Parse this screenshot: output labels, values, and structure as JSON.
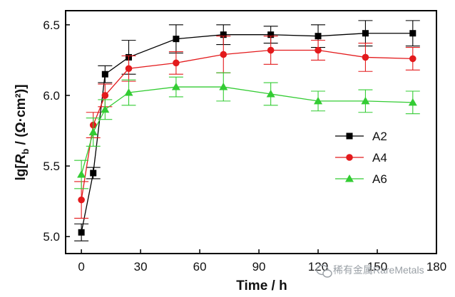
{
  "chart_data": {
    "type": "line",
    "xlabel": "Time / h",
    "ylabel_parts": {
      "pre": "lg[",
      "italic": "R",
      "sub": "b",
      "post": " / (Ω·cm²)]"
    },
    "xlim": [
      -8,
      180
    ],
    "ylim": [
      4.88,
      6.6
    ],
    "xticks": [
      0,
      30,
      60,
      90,
      120,
      150,
      180
    ],
    "yticks": [
      5.0,
      5.5,
      6.0,
      6.5
    ],
    "ytick_labels": [
      "5.0",
      "5.5",
      "6.0",
      "6.5"
    ],
    "legend_position": "right-middle",
    "series": [
      {
        "name": "A2",
        "color": "#000000",
        "marker": "square",
        "points": [
          {
            "x": 0,
            "y": 5.03,
            "err": 0.06
          },
          {
            "x": 6,
            "y": 5.45,
            "err": 0.04
          },
          {
            "x": 12,
            "y": 6.15,
            "err": 0.06
          },
          {
            "x": 24,
            "y": 6.27,
            "err": 0.12
          },
          {
            "x": 48,
            "y": 6.4,
            "err": 0.1
          },
          {
            "x": 72,
            "y": 6.43,
            "err": 0.07
          },
          {
            "x": 96,
            "y": 6.43,
            "err": 0.06
          },
          {
            "x": 120,
            "y": 6.42,
            "err": 0.08
          },
          {
            "x": 144,
            "y": 6.44,
            "err": 0.09
          },
          {
            "x": 168,
            "y": 6.44,
            "err": 0.09
          }
        ]
      },
      {
        "name": "A4",
        "color": "#e31a1c",
        "marker": "circle",
        "points": [
          {
            "x": 0,
            "y": 5.26,
            "err": 0.13
          },
          {
            "x": 6,
            "y": 5.79,
            "err": 0.09
          },
          {
            "x": 12,
            "y": 6.0,
            "err": 0.08
          },
          {
            "x": 24,
            "y": 6.19,
            "err": 0.09
          },
          {
            "x": 48,
            "y": 6.23,
            "err": 0.08
          },
          {
            "x": 72,
            "y": 6.29,
            "err": 0.13
          },
          {
            "x": 96,
            "y": 6.32,
            "err": 0.1
          },
          {
            "x": 120,
            "y": 6.32,
            "err": 0.07
          },
          {
            "x": 144,
            "y": 6.27,
            "err": 0.1
          },
          {
            "x": 168,
            "y": 6.26,
            "err": 0.08
          }
        ]
      },
      {
        "name": "A6",
        "color": "#33cc33",
        "marker": "triangle",
        "points": [
          {
            "x": 0,
            "y": 5.44,
            "err": 0.1
          },
          {
            "x": 6,
            "y": 5.74,
            "err": 0.1
          },
          {
            "x": 12,
            "y": 5.9,
            "err": 0.07
          },
          {
            "x": 24,
            "y": 6.02,
            "err": 0.09
          },
          {
            "x": 48,
            "y": 6.06,
            "err": 0.07
          },
          {
            "x": 72,
            "y": 6.06,
            "err": 0.1
          },
          {
            "x": 96,
            "y": 6.01,
            "err": 0.08
          },
          {
            "x": 120,
            "y": 5.96,
            "err": 0.07
          },
          {
            "x": 144,
            "y": 5.96,
            "err": 0.08
          },
          {
            "x": 168,
            "y": 5.95,
            "err": 0.08
          }
        ]
      }
    ]
  },
  "watermark": {
    "text": "稀有金属RareMetals",
    "icon": "wechat-icon"
  }
}
